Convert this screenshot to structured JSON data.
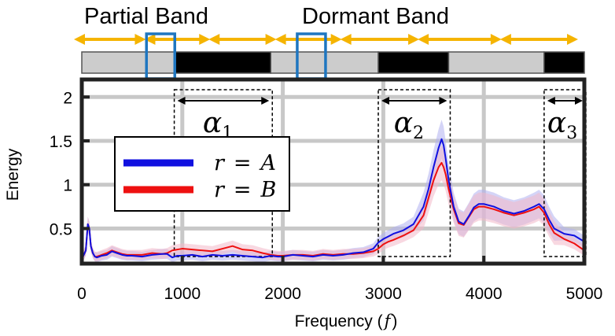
{
  "chart_data": {
    "type": "line",
    "title": "",
    "xlabel": "Frequency (",
    "xlabel_var": "f",
    "xlabel_close": ")",
    "ylabel": "Energy",
    "xlim": [
      0,
      5000
    ],
    "ylim": [
      0.1,
      2.2
    ],
    "x_ticks": [
      0,
      1000,
      2000,
      3000,
      4000,
      5000
    ],
    "x_tick_labels": [
      "0",
      "1000",
      "2000",
      "3000",
      "4000",
      "5000"
    ],
    "y_ticks": [
      0.5,
      1,
      1.5,
      2
    ],
    "y_tick_labels": [
      "0.5",
      "1",
      "1.5",
      "2"
    ],
    "grid": true,
    "legend_position": "middle-left",
    "band_labels": [
      "Partial Band",
      "Dormant Band"
    ],
    "band_segments": [
      {
        "start": 0,
        "end": 920,
        "state": "partial"
      },
      {
        "start": 920,
        "end": 1880,
        "state": "dormant"
      },
      {
        "start": 1880,
        "end": 2950,
        "state": "partial"
      },
      {
        "start": 2950,
        "end": 3650,
        "state": "dormant"
      },
      {
        "start": 3650,
        "end": 4600,
        "state": "partial"
      },
      {
        "start": 4600,
        "end": 5000,
        "state": "dormant"
      }
    ],
    "band_arrows": [
      [
        0,
        700
      ],
      [
        700,
        1340
      ],
      [
        1340,
        2000
      ],
      [
        2000,
        2650
      ],
      [
        2650,
        3420
      ],
      [
        3420,
        4240
      ],
      [
        4240,
        5000
      ]
    ],
    "zoom_markers": [
      [
        800,
        1100
      ],
      [
        2300,
        2600
      ]
    ],
    "regions": [
      {
        "name": "α",
        "sub": "1",
        "start": 920,
        "end": 1880
      },
      {
        "name": "α",
        "sub": "2",
        "start": 2950,
        "end": 3650
      },
      {
        "name": "α",
        "sub": "3",
        "start": 4600,
        "end": 5000
      }
    ],
    "series": [
      {
        "name": "r = A",
        "legend_var": "r",
        "legend_eq": "=",
        "legend_val": "A",
        "color": "#1010e0",
        "band_color": "#b0b0f0",
        "x": [
          0,
          40,
          60,
          75,
          90,
          110,
          130,
          150,
          200,
          250,
          300,
          350,
          400,
          450,
          500,
          600,
          700,
          800,
          850,
          900,
          950,
          1000,
          1100,
          1200,
          1300,
          1400,
          1500,
          1600,
          1700,
          1800,
          1880,
          1950,
          2000,
          2100,
          2200,
          2300,
          2400,
          2500,
          2600,
          2700,
          2800,
          2900,
          2950,
          3000,
          3050,
          3100,
          3200,
          3300,
          3400,
          3450,
          3500,
          3550,
          3580,
          3600,
          3620,
          3650,
          3700,
          3750,
          3800,
          3850,
          3900,
          3950,
          4000,
          4100,
          4200,
          4300,
          4400,
          4500,
          4550,
          4600,
          4650,
          4700,
          4800,
          4900,
          5000
        ],
        "values": [
          0.15,
          0.25,
          0.55,
          0.5,
          0.3,
          0.22,
          0.18,
          0.17,
          0.19,
          0.2,
          0.24,
          0.22,
          0.2,
          0.19,
          0.19,
          0.18,
          0.2,
          0.21,
          0.21,
          0.17,
          0.19,
          0.19,
          0.2,
          0.18,
          0.2,
          0.19,
          0.2,
          0.19,
          0.18,
          0.17,
          0.19,
          0.18,
          0.18,
          0.2,
          0.19,
          0.18,
          0.2,
          0.19,
          0.2,
          0.22,
          0.23,
          0.27,
          0.34,
          0.38,
          0.41,
          0.44,
          0.48,
          0.55,
          0.75,
          0.95,
          1.2,
          1.42,
          1.52,
          1.45,
          1.3,
          1.05,
          0.75,
          0.58,
          0.55,
          0.64,
          0.74,
          0.78,
          0.78,
          0.75,
          0.7,
          0.67,
          0.7,
          0.75,
          0.78,
          0.72,
          0.6,
          0.5,
          0.44,
          0.42,
          0.35
        ]
      },
      {
        "name": "r = B",
        "legend_var": "r",
        "legend_eq": "=",
        "legend_val": "B",
        "color": "#ee1010",
        "band_color": "#f3b8c8",
        "x": [
          0,
          40,
          60,
          75,
          90,
          110,
          130,
          150,
          200,
          250,
          300,
          350,
          400,
          450,
          500,
          600,
          700,
          800,
          850,
          900,
          950,
          1000,
          1100,
          1200,
          1300,
          1400,
          1500,
          1600,
          1700,
          1800,
          1880,
          1950,
          2000,
          2100,
          2200,
          2300,
          2400,
          2500,
          2600,
          2700,
          2800,
          2900,
          2950,
          3000,
          3050,
          3100,
          3200,
          3300,
          3400,
          3450,
          3500,
          3550,
          3580,
          3600,
          3620,
          3650,
          3700,
          3750,
          3800,
          3850,
          3900,
          3950,
          4000,
          4100,
          4200,
          4300,
          4400,
          4500,
          4550,
          4600,
          4650,
          4700,
          4800,
          4900,
          5000
        ],
        "values": [
          0.15,
          0.25,
          0.55,
          0.5,
          0.3,
          0.22,
          0.18,
          0.18,
          0.2,
          0.22,
          0.25,
          0.23,
          0.21,
          0.2,
          0.2,
          0.2,
          0.22,
          0.21,
          0.22,
          0.25,
          0.26,
          0.27,
          0.26,
          0.25,
          0.24,
          0.27,
          0.3,
          0.26,
          0.25,
          0.22,
          0.2,
          0.19,
          0.19,
          0.2,
          0.2,
          0.19,
          0.21,
          0.2,
          0.21,
          0.21,
          0.22,
          0.24,
          0.27,
          0.32,
          0.35,
          0.37,
          0.42,
          0.48,
          0.65,
          0.85,
          1.05,
          1.2,
          1.25,
          1.2,
          1.12,
          0.95,
          0.72,
          0.56,
          0.54,
          0.63,
          0.72,
          0.75,
          0.75,
          0.72,
          0.68,
          0.65,
          0.68,
          0.72,
          0.75,
          0.68,
          0.55,
          0.45,
          0.38,
          0.33,
          0.25
        ]
      }
    ]
  }
}
